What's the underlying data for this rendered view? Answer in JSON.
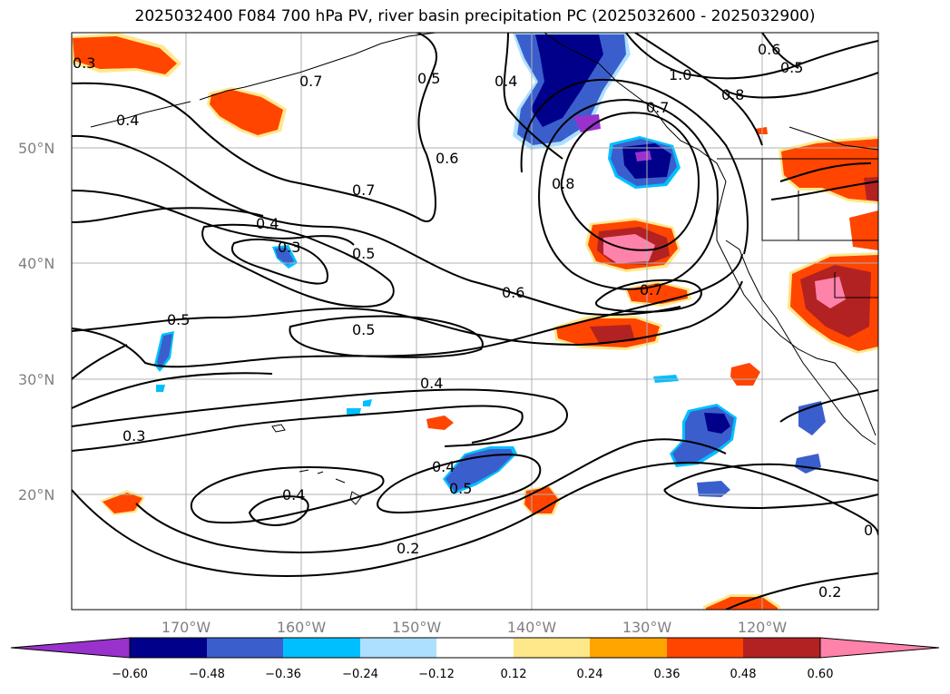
{
  "title": "2025032400 F084 700 hPa PV, river basin precipitation PC (2025032600 - 2025032900)",
  "map": {
    "lon_range": [
      -180,
      -110
    ],
    "lat_range": [
      10,
      60
    ],
    "lat_ticks": [
      "20°N",
      "30°N",
      "40°N",
      "50°N"
    ],
    "lon_ticks": [
      "170°W",
      "160°W",
      "150°W",
      "140°W",
      "130°W",
      "120°W"
    ],
    "grid": true
  },
  "colorbar": {
    "ticks": [
      "−0.60",
      "−0.48",
      "−0.36",
      "−0.24",
      "−0.12",
      "0.12",
      "0.24",
      "0.36",
      "0.48",
      "0.60"
    ],
    "colors": [
      "#9932CC",
      "#00008B",
      "#3A5FCD",
      "#00BFFF",
      "#ADDFFF",
      "#FFFFFF",
      "#FFE88A",
      "#FFA500",
      "#FF4500",
      "#B22222",
      "#FF82AB"
    ]
  },
  "contour_labels": [
    "0.3",
    "0.4",
    "0.7",
    "0.4",
    "0.5",
    "0.6",
    "0.7",
    "0.4",
    "0.3",
    "0.5",
    "0.5",
    "0.5",
    "0.6",
    "0.4",
    "0.3",
    "0.4",
    "0.4",
    "0.5",
    "0.2",
    "0.8",
    "0.7",
    "1.0",
    "0.8",
    "0.6",
    "0.5",
    "0.7",
    "0.2",
    "0"
  ]
}
